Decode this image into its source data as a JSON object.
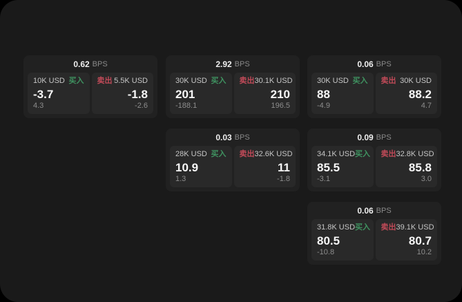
{
  "window": {
    "background": "#1a1a1a",
    "outer_background": "#000000"
  },
  "labels": {
    "bps_unit": "BPS",
    "buy": "买入",
    "sell": "卖出"
  },
  "colors": {
    "buy_label": "#3f9260",
    "sell_label": "#c04a58",
    "card_bg": "#212121",
    "panel_bg": "#292929"
  },
  "cards": [
    {
      "col": 1,
      "bps": "0.62",
      "buy": {
        "amount": "10K USD",
        "value": "-3.7",
        "sub": "4.3"
      },
      "sell": {
        "amount": "5.5K USD",
        "value": "-1.8",
        "sub": "-2.6"
      }
    },
    {
      "col": 2,
      "bps": "2.92",
      "buy": {
        "amount": "30K USD",
        "value": "201",
        "sub": "-188.1"
      },
      "sell": {
        "amount": "30.1K USD",
        "value": "210",
        "sub": "196.5"
      }
    },
    {
      "col": 3,
      "bps": "0.06",
      "buy": {
        "amount": "30K USD",
        "value": "88",
        "sub": "-4.9"
      },
      "sell": {
        "amount": "30K USD",
        "value": "88.2",
        "sub": "4.7"
      }
    },
    {
      "col": 2,
      "bps": "0.03",
      "buy": {
        "amount": "28K USD",
        "value": "10.9",
        "sub": "1.3"
      },
      "sell": {
        "amount": "32.6K USD",
        "value": "11",
        "sub": "-1.8"
      }
    },
    {
      "col": 3,
      "bps": "0.09",
      "buy": {
        "amount": "34.1K USD",
        "value": "85.5",
        "sub": "-3.1"
      },
      "sell": {
        "amount": "32.8K USD",
        "value": "85.8",
        "sub": "3.0"
      }
    },
    {
      "col": 3,
      "bps": "0.06",
      "buy": {
        "amount": "31.8K USD",
        "value": "80.5",
        "sub": "-10.8"
      },
      "sell": {
        "amount": "39.1K USD",
        "value": "80.7",
        "sub": "10.2"
      }
    }
  ]
}
